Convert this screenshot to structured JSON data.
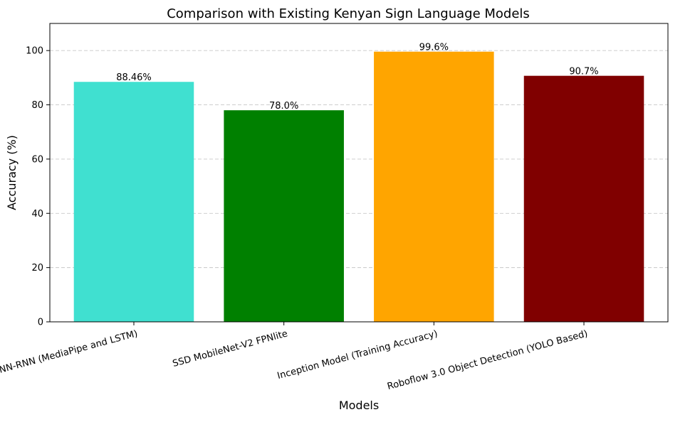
{
  "chart_data": {
    "type": "bar",
    "title": "Comparison with Existing Kenyan Sign Language Models",
    "xlabel": "Models",
    "ylabel": "Accuracy (%)",
    "categories": [
      "Hybrid CNN-RNN (MediaPipe and LSTM)",
      "SSD MobileNet-V2 FPNlite",
      "Inception Model (Training Accuracy)",
      "Roboflow 3.0 Object Detection (YOLO Based)"
    ],
    "values": [
      88.46,
      78.0,
      99.6,
      90.7
    ],
    "value_labels": [
      "88.46%",
      "78.0%",
      "99.6%",
      "90.7%"
    ],
    "colors": [
      "#40e0d0",
      "#008000",
      "#ffa500",
      "#800000"
    ],
    "ylim": [
      0,
      110
    ],
    "yticks": [
      0,
      20,
      40,
      60,
      80,
      100
    ],
    "grid": "y-dashed"
  }
}
